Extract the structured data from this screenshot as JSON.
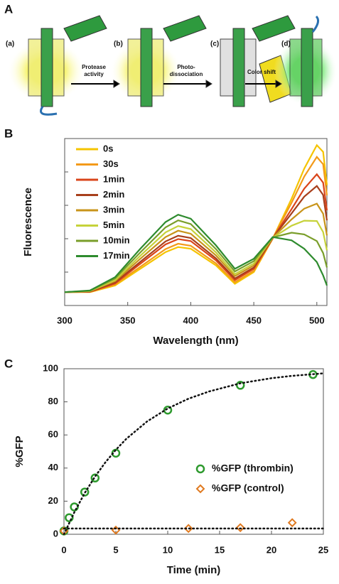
{
  "panel_a": {
    "label": "A",
    "stages": [
      "(a)",
      "(b)",
      "(c)",
      "(d)"
    ],
    "arrows": [
      [
        "Protease",
        "activity"
      ],
      [
        "Photo-",
        "dissociation"
      ],
      [
        "Color shift"
      ]
    ]
  },
  "chart_data": [
    {
      "type": "line",
      "panel_label": "B",
      "xlabel": "Wavelength (nm)",
      "ylabel": "Fluorescence",
      "xlim": [
        300,
        508
      ],
      "xticks": [
        300,
        350,
        400,
        450,
        500
      ],
      "ylim": [
        0,
        5
      ],
      "yticks": [
        1,
        2,
        3,
        4
      ],
      "x": [
        300,
        320,
        340,
        360,
        380,
        390,
        400,
        420,
        435,
        450,
        465,
        480,
        490,
        500,
        505,
        508
      ],
      "series": [
        {
          "name": "0s",
          "color": "#f5c400",
          "values": [
            0.4,
            0.4,
            0.6,
            1.1,
            1.6,
            1.75,
            1.7,
            1.2,
            0.65,
            1.0,
            2.0,
            3.2,
            4.1,
            4.8,
            4.6,
            3.6
          ]
        },
        {
          "name": "30s",
          "color": "#f39a1a",
          "values": [
            0.4,
            0.41,
            0.63,
            1.16,
            1.69,
            1.85,
            1.79,
            1.26,
            0.7,
            1.04,
            2.01,
            3.08,
            3.86,
            4.45,
            4.23,
            3.3
          ]
        },
        {
          "name": "1min",
          "color": "#d9441a",
          "values": [
            0.4,
            0.41,
            0.66,
            1.25,
            1.83,
            1.99,
            1.93,
            1.35,
            0.76,
            1.1,
            2.01,
            2.89,
            3.5,
            3.93,
            3.68,
            2.85
          ]
        },
        {
          "name": "2min",
          "color": "#a83f1c",
          "values": [
            0.4,
            0.42,
            0.69,
            1.31,
            1.92,
            2.09,
            2.02,
            1.41,
            0.81,
            1.14,
            2.02,
            2.76,
            3.26,
            3.58,
            3.31,
            2.55
          ]
        },
        {
          "name": "3min",
          "color": "#c8941a",
          "values": [
            0.4,
            0.43,
            0.73,
            1.4,
            2.05,
            2.24,
            2.15,
            1.5,
            0.88,
            1.2,
            2.03,
            2.58,
            2.9,
            3.05,
            2.75,
            2.1
          ]
        },
        {
          "name": "5min",
          "color": "#c6d23a",
          "values": [
            0.4,
            0.43,
            0.76,
            1.49,
            2.19,
            2.38,
            2.29,
            1.59,
            0.94,
            1.26,
            2.03,
            2.39,
            2.54,
            2.53,
            2.2,
            1.65
          ]
        },
        {
          "name": "10min",
          "color": "#7a9e2a",
          "values": [
            0.4,
            0.44,
            0.81,
            1.59,
            2.34,
            2.55,
            2.44,
            1.69,
            1.02,
            1.33,
            2.04,
            2.18,
            2.13,
            1.93,
            1.57,
            1.14
          ]
        },
        {
          "name": "17min",
          "color": "#2e8b2e",
          "values": [
            0.4,
            0.45,
            0.85,
            1.7,
            2.5,
            2.72,
            2.6,
            1.8,
            1.1,
            1.4,
            2.05,
            1.95,
            1.7,
            1.3,
            0.9,
            0.6
          ]
        }
      ]
    },
    {
      "type": "scatter",
      "panel_label": "C",
      "xlabel": "Time (min)",
      "ylabel": "%GFP",
      "xlim": [
        0,
        25
      ],
      "xticks": [
        0,
        5,
        10,
        15,
        20,
        25
      ],
      "ylim": [
        0,
        100
      ],
      "yticks": [
        0,
        20,
        40,
        60,
        80,
        100
      ],
      "series": [
        {
          "name": "%GFP (thrombin)",
          "color": "#2e9a2e",
          "marker": "circle",
          "x": [
            0,
            0.5,
            1,
            2,
            3,
            5,
            10,
            17,
            24
          ],
          "values": [
            2,
            10,
            16.5,
            25.5,
            34,
            49,
            75,
            90,
            96.5
          ]
        },
        {
          "name": "%GFP (control)",
          "color": "#e07a20",
          "marker": "diamond",
          "x": [
            0,
            5,
            12,
            17,
            22
          ],
          "values": [
            2,
            2.5,
            3.5,
            4,
            7
          ]
        },
        {
          "color": "#111111",
          "style": "dotted",
          "x": [
            0,
            1,
            2,
            3,
            4,
            5,
            6,
            8,
            10,
            12,
            14,
            17,
            20,
            22,
            25
          ],
          "values": [
            0,
            13.3,
            24.9,
            34.9,
            43.5,
            51.0,
            57.6,
            68.1,
            76.0,
            81.9,
            86.3,
            91.2,
            94.3,
            95.7,
            97.2
          ]
        },
        {
          "color": "#111111",
          "style": "dotted",
          "x": [
            0,
            25
          ],
          "values": [
            3.5,
            3.5
          ]
        }
      ]
    }
  ]
}
